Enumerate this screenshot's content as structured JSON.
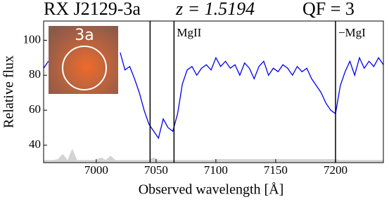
{
  "chart_data": {
    "type": "line",
    "title_object": "RX J2129-3a",
    "title_redshift": "z = 1.5194",
    "title_qf": "QF = 3",
    "xlabel": "Observed wavelength  [Å]",
    "ylabel": "Relative flux",
    "inset_label": "3a",
    "xlim": [
      6956,
      7240
    ],
    "ylim": [
      30,
      111
    ],
    "xticks": [
      7000,
      7050,
      7100,
      7150,
      7200
    ],
    "yticks": [
      40,
      60,
      80,
      100
    ],
    "x": [
      6956,
      6960,
      6964,
      6968,
      6972,
      6976,
      6980,
      6984,
      6988,
      6992,
      6996,
      7000,
      7004,
      7008,
      7012,
      7016,
      7020,
      7024,
      7028,
      7032,
      7036,
      7040,
      7044,
      7048,
      7052,
      7056,
      7060,
      7064,
      7068,
      7072,
      7076,
      7080,
      7084,
      7088,
      7092,
      7096,
      7100,
      7104,
      7108,
      7112,
      7116,
      7120,
      7124,
      7128,
      7132,
      7136,
      7140,
      7144,
      7148,
      7152,
      7156,
      7160,
      7164,
      7168,
      7172,
      7176,
      7180,
      7184,
      7188,
      7192,
      7196,
      7200,
      7204,
      7208,
      7212,
      7216,
      7220,
      7224,
      7228,
      7232,
      7236,
      7240
    ],
    "series": [
      {
        "color": "#0000ee",
        "values": [
          84,
          88,
          null,
          null,
          null,
          null,
          null,
          null,
          null,
          null,
          null,
          null,
          null,
          null,
          null,
          null,
          93,
          83,
          85,
          78,
          70,
          60,
          52,
          48,
          44,
          55,
          50,
          48,
          58,
          75,
          83,
          85,
          80,
          84,
          86,
          83,
          90,
          85,
          88,
          84,
          86,
          80,
          87,
          84,
          78,
          85,
          88,
          80,
          84,
          82,
          86,
          84,
          80,
          85,
          82,
          84,
          78,
          74,
          70,
          64,
          60,
          58,
          74,
          82,
          88,
          80,
          90,
          84,
          88,
          85,
          90,
          86
        ]
      },
      {
        "color": "#d3d3d3",
        "fill": true,
        "values": [
          31.5,
          31.5,
          31.5,
          32,
          35,
          31.5,
          38,
          31.5,
          31.5,
          31.5,
          31.5,
          31.5,
          33,
          31.5,
          34,
          31.5,
          31.5,
          31.5,
          31.5,
          31.5,
          31.5,
          31.5,
          31.5,
          33,
          31.5,
          31.5,
          31.5,
          31.5,
          31.5,
          31.5,
          31.5,
          31.5,
          31.5,
          31.5,
          31.5,
          31.5,
          32,
          32,
          32,
          32,
          32,
          32,
          32,
          32,
          32,
          32,
          32,
          32,
          32,
          32,
          32,
          32,
          32,
          32,
          32,
          32,
          32,
          32,
          32,
          32,
          32,
          32,
          31.5,
          31.5,
          31.5,
          31.5,
          31.5,
          31.5,
          31.5,
          31.5,
          31.5,
          31.5
        ]
      }
    ],
    "vlines": [
      7045,
      7065,
      7200
    ],
    "annotations": [
      {
        "x": 7065,
        "text": "MgII"
      },
      {
        "x": 7200,
        "text": "−MgI"
      }
    ]
  }
}
